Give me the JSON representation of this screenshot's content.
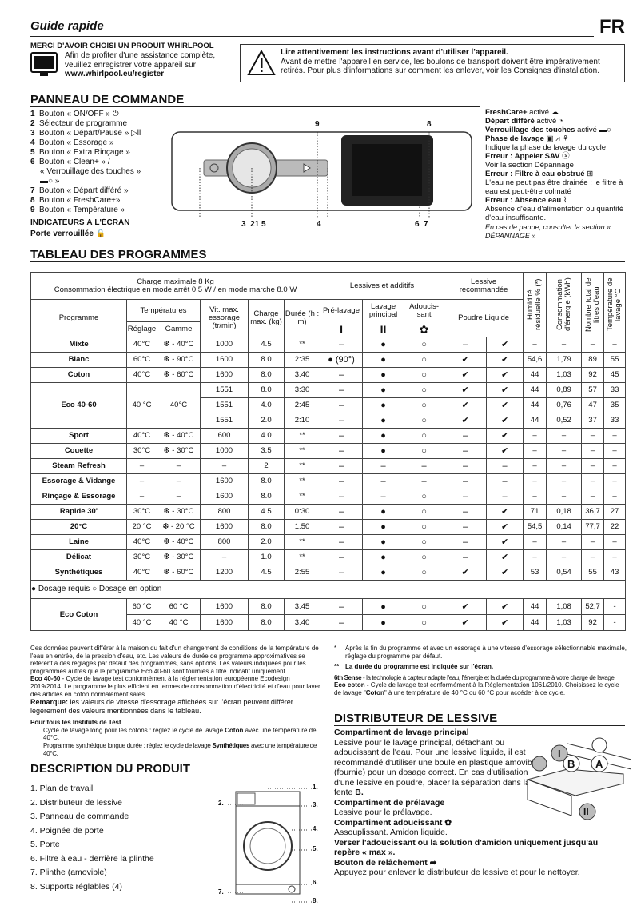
{
  "header": {
    "title": "Guide rapide",
    "lang": "FR"
  },
  "thanks": {
    "title": "MERCI D'AVOIR CHOISI UN PRODUIT WHIRLPOOL",
    "lines": [
      "Afin de profiter d'une assistance complète,",
      "veuillez enregistrer votre appareil sur"
    ],
    "url": "www.whirlpool.eu/register"
  },
  "warning": {
    "title": "Lire attentivement les instructions avant d'utiliser l'appareil.",
    "text": "Avant de mettre l'appareil en service, les boulons de transport doivent être impérativement retirés. Pour plus d'informations sur comment les enlever, voir les Consignes d'installation."
  },
  "panel": {
    "heading": "PANNEAU DE COMMANDE",
    "items": [
      {
        "n": "1",
        "t": "Bouton « ON/OFF »  ⏻"
      },
      {
        "n": "2",
        "t": "Sélecteur de programme"
      },
      {
        "n": "3",
        "t": "Bouton « Départ/Pause »  ▷ll"
      },
      {
        "n": "4",
        "t": "Bouton « Essorage »"
      },
      {
        "n": "5",
        "t": "Bouton « Extra Rinçage »"
      },
      {
        "n": "6",
        "t": "Bouton « Clean+ » /"
      },
      {
        "n": "",
        "t": "« Verrouillage des touches »"
      },
      {
        "n": "",
        "t": "▬○ »"
      },
      {
        "n": "7",
        "t": "Bouton « Départ différé »"
      },
      {
        "n": "8",
        "t": "Bouton « FreshCare+»"
      },
      {
        "n": "9",
        "t": "Bouton « Température »"
      }
    ],
    "indicators_title": "INDICATEURS À L'ÉCRAN",
    "door_locked": "Porte verrouillée 🔒",
    "callouts": {
      "top9": "9",
      "top8": "8",
      "b1": "3  21 5",
      "b2": "4",
      "b3": "6  7"
    },
    "right": [
      {
        "b": "FreshCare+",
        "t": " activé ☁"
      },
      {
        "b": "Départ différé",
        "t": " activé ◔"
      },
      {
        "b": "Verrouillage des touches",
        "t": " activé ▬○"
      },
      {
        "b": "Phase de lavage",
        "t": " ▣  ⩘  ⚘"
      },
      {
        "b": "",
        "t": "Indique la phase de lavage du cycle"
      },
      {
        "b": "Erreur : Appeler SAV",
        "t": " ⓢ"
      },
      {
        "b": "",
        "t": "Voir la section Dépannage"
      },
      {
        "b": "Erreur : Filtre à eau obstrué",
        "t": " ⊞"
      },
      {
        "b": "",
        "t": "L'eau ne peut pas être drainée ; le filtre à eau est peut-être colmaté"
      },
      {
        "b": "Erreur : Absence eau",
        "t": " ⌇"
      },
      {
        "b": "",
        "t": "Absence d'eau d'alimentation ou quantité d'eau insuffisante."
      }
    ],
    "note": "En cas de panne, consulter la section « DÉPANNAGE »"
  },
  "table": {
    "heading": "TABLEAU DES PROGRAMMES",
    "charge": "Charge maximale 8 Kg",
    "conso": "Consommation électrique en mode arrêt 0.5 W / en mode marche 8.0 W",
    "lessives": "Lessives et additifs",
    "recommandee": "Lessive recommandée",
    "cols": {
      "programme": "Programme",
      "temperatures": "Températures",
      "reglage": "Réglage",
      "gamme": "Gamme",
      "vitesse": "Vit. max. essorage (tr/min)",
      "charge": "Charge max. (kg)",
      "duree": "Durée (h : m)",
      "prelavage": "Pré-lavage",
      "lavage": "Lavage principal",
      "adoucissant": "Adoucis-sant",
      "poudre_liquide": "Poudre Liquide",
      "humidite": "Humidité résiduelle % (*)",
      "energie": "Consommation d'énergie (kWh)",
      "litres": "Nombre total de litres d'eau",
      "temperature": "Température de lavage °C"
    },
    "icons": {
      "prelavage": "I",
      "lavage": "II",
      "adoucissant": "✿"
    },
    "programs": [
      {
        "name": "Mixte",
        "reglage": "40°C",
        "gamme": "❆ - 40°C",
        "v": [
          [
            "1000",
            "4.5",
            "**",
            "–",
            "●",
            "○",
            "–",
            "✔",
            "–",
            "–",
            "–",
            "–"
          ]
        ]
      },
      {
        "name": "Blanc",
        "reglage": "60°C",
        "gamme": "❆ - 90°C",
        "v": [
          [
            "1600",
            "8.0",
            "2:35",
            "● (90°)",
            "●",
            "○",
            "✔",
            "✔",
            "54,6",
            "1,79",
            "89",
            "55"
          ]
        ]
      },
      {
        "name": "Coton",
        "reglage": "40°C",
        "gamme": "❆ - 60°C",
        "v": [
          [
            "1600",
            "8.0",
            "3:40",
            "–",
            "●",
            "○",
            "✔",
            "✔",
            "44",
            "1,03",
            "92",
            "45"
          ]
        ]
      },
      {
        "name": "Eco 40-60",
        "reglage": "40 °C",
        "gamme": "40°C",
        "v": [
          [
            "1551",
            "8.0",
            "3:30",
            "–",
            "●",
            "○",
            "✔",
            "✔",
            "44",
            "0,89",
            "57",
            "33"
          ],
          [
            "1551",
            "4.0",
            "2:45",
            "–",
            "●",
            "○",
            "✔",
            "✔",
            "44",
            "0,76",
            "47",
            "35"
          ],
          [
            "1551",
            "2.0",
            "2:10",
            "–",
            "●",
            "○",
            "✔",
            "✔",
            "44",
            "0,52",
            "37",
            "33"
          ]
        ]
      },
      {
        "name": "Sport",
        "reglage": "40°C",
        "gamme": "❆ - 40°C",
        "v": [
          [
            "600",
            "4.0",
            "**",
            "–",
            "●",
            "○",
            "–",
            "✔",
            "–",
            "–",
            "–",
            "–"
          ]
        ]
      },
      {
        "name": "Couette",
        "reglage": "30°C",
        "gamme": "❆ - 30°C",
        "v": [
          [
            "1000",
            "3.5",
            "**",
            "–",
            "●",
            "○",
            "–",
            "✔",
            "–",
            "–",
            "–",
            "–"
          ]
        ]
      },
      {
        "name": "Steam Refresh",
        "reglage": "–",
        "gamme": "–",
        "v": [
          [
            "–",
            "2",
            "**",
            "–",
            "–",
            "–",
            "–",
            "–",
            "–",
            "–",
            "–",
            "–"
          ]
        ]
      },
      {
        "name": "Essorage & Vidange",
        "reglage": "–",
        "gamme": "–",
        "v": [
          [
            "1600",
            "8.0",
            "**",
            "–",
            "–",
            "–",
            "–",
            "–",
            "–",
            "–",
            "–",
            "–"
          ]
        ]
      },
      {
        "name": "Rinçage & Essorage",
        "reglage": "–",
        "gamme": "–",
        "v": [
          [
            "1600",
            "8.0",
            "**",
            "–",
            "–",
            "○",
            "–",
            "–",
            "–",
            "–",
            "–",
            "–"
          ]
        ]
      },
      {
        "name": "Rapide 30'",
        "reglage": "30°C",
        "gamme": "❆ - 30°C",
        "v": [
          [
            "800",
            "4.5",
            "0:30",
            "–",
            "●",
            "○",
            "–",
            "✔",
            "71",
            "0,18",
            "36,7",
            "27"
          ]
        ]
      },
      {
        "name": "20°C",
        "reglage": "20 °C",
        "gamme": "❆ - 20 °C",
        "v": [
          [
            "1600",
            "8.0",
            "1:50",
            "–",
            "●",
            "○",
            "–",
            "✔",
            "54,5",
            "0,14",
            "77,7",
            "22"
          ]
        ]
      },
      {
        "name": "Laine",
        "reglage": "40°C",
        "gamme": "❆ - 40°C",
        "v": [
          [
            "800",
            "2.0",
            "**",
            "–",
            "●",
            "○",
            "–",
            "✔",
            "–",
            "–",
            "–",
            "–"
          ]
        ]
      },
      {
        "name": "Délicat",
        "reglage": "30°C",
        "gamme": "❆ - 30°C",
        "v": [
          [
            "–",
            "1.0",
            "**",
            "–",
            "●",
            "○",
            "–",
            "✔",
            "–",
            "–",
            "–",
            "–"
          ]
        ]
      },
      {
        "name": "Synthétiques",
        "reglage": "40°C",
        "gamme": "❆ - 60°C",
        "v": [
          [
            "1200",
            "4.5",
            "2:55",
            "–",
            "●",
            "○",
            "✔",
            "✔",
            "53",
            "0,54",
            "55",
            "43"
          ]
        ]
      }
    ],
    "legend": "● Dosage requis  ○ Dosage en option",
    "eco_coton": {
      "name": "Eco Coton",
      "rows": [
        [
          "60 °C",
          "60 °C",
          "1600",
          "8.0",
          "3:45",
          "–",
          "●",
          "○",
          "✔",
          "✔",
          "44",
          "1,08",
          "52,7",
          "-"
        ],
        [
          "40 °C",
          "40 °C",
          "1600",
          "8.0",
          "3:40",
          "–",
          "●",
          "○",
          "✔",
          "✔",
          "44",
          "1,03",
          "92",
          "-"
        ]
      ]
    }
  },
  "notes": {
    "left": "Ces données peuvent différer à la maison du fait d'un changement de conditions de la température de l'eau en entrée, de la pression d'eau, etc. Les valeurs de durée de programme approximatives se réfèrent à des réglages par défaut des programmes, sans options. Les valeurs indiquées pour les programmes autres que le programme Eco 40-60 sont fournies à titre indicatif uniquement.",
    "eco_b": "Eco 40-60",
    "eco_t": " - Cycle de lavage test conformément à la réglementation européenne Ecodesign 2019/2014. Le programme le plus efficient en termes de consommation d'électricité et d'eau pour laver des articles en coton normalement sales.",
    "rem_b": "Remarque:",
    "rem_t": " les valeurs de vitesse d'essorage affichées sur l'écran peuvent différer légèrement des valeurs mentionnées dans le tableau.",
    "inst_title": "Pour tous les Instituts de Test",
    "inst1a": "Cycle de lavage long pour les cotons :  réglez le cycle de lavage ",
    "inst1b": "Coton",
    "inst1c": " avec une température de 40°C.",
    "inst2a": "Programme synthétique longue durée : réglez le cycle de lavage ",
    "inst2b": "Synthétiques",
    "inst2c": " avec une température de 40°C.",
    "star1": "*",
    "star1_t": "Après la fin du programme et avec un essorage à une vitesse d'essorage sélectionnable maximale, réglage du programme par défaut.",
    "star2": "**",
    "star2_t": "La durée du programme est indiquée sur l'écran.",
    "sense_b": "6th Sense",
    "sense_t": " - la technologie à capteur adapte l'eau, l'énergie et la durée du programme à votre charge de lavage.",
    "ecoc_b": "Eco coton -",
    "ecoc_t1": " Cycle de lavage test conformément à la Réglementation 1061/2010. Choisissez le cycle de lavage \"",
    "ecoc_t2": "Coton",
    "ecoc_t3": "\" à une température de 40 °C ou 60 °C pour accéder à ce cycle."
  },
  "description": {
    "heading": "DESCRIPTION DU PRODUIT",
    "items": [
      "1.  Plan de travail",
      "2.  Distributeur de lessive",
      "3.  Panneau de commande",
      "4.  Poignée de porte",
      "5.  Porte",
      "6.  Filtre à eau - derrière la plinthe",
      "7.  Plinthe (amovible)",
      "8.  Supports réglables (4)"
    ],
    "callouts": [
      "1.",
      "2.",
      "3.",
      "4.",
      "5.",
      "6.",
      "7.",
      "8."
    ]
  },
  "distributor": {
    "heading": "DISTRIBUTEUR DE LESSIVE",
    "main_t": "Compartiment de lavage principal",
    "main_d1": "Lessive pour le lavage principal, détachant ou adoucissant de l'eau. Pour une lessive liquide, il est recommandé d'utiliser une boule en plastique amovible ",
    "A": "A",
    "main_d2": " (fournie) pour un dosage correct. En cas d'utilisation d'une lessive en poudre, placer la séparation dans la fente ",
    "B": "B.",
    "pre_t": "Compartiment de prélavage",
    "pre_d": "Lessive pour le prélavage.",
    "adou_t": "Compartiment adoucissant ✿",
    "adou_d": "Assouplissant. Amidon liquide.",
    "max": "Verser l'adoucissant ou la solution d'amidon uniquement jusqu'au repère « max ».",
    "rel_t": "Bouton de relâchement ➦",
    "rel_d": "Appuyez pour enlever le distributeur de lessive et pour le nettoyer.",
    "labels": {
      "I": "I",
      "II": "II",
      "A": "A",
      "B": "B"
    }
  }
}
